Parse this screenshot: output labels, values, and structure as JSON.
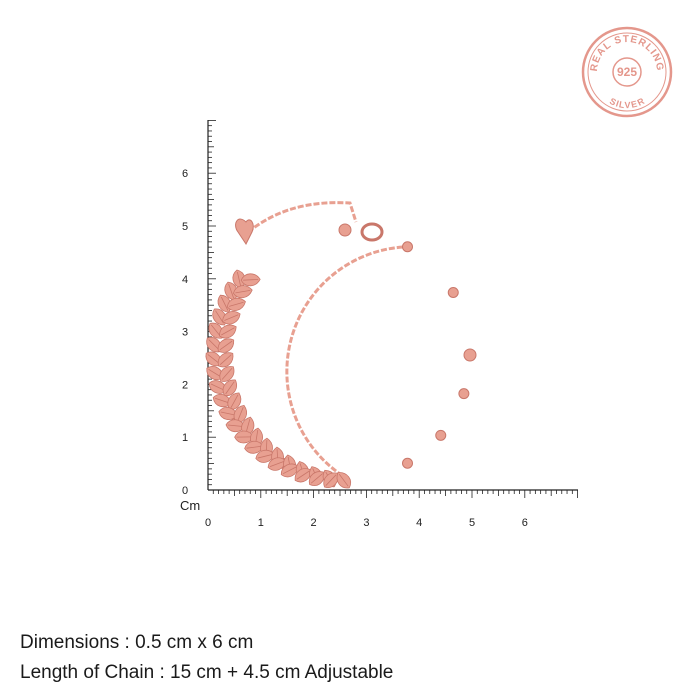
{
  "badge": {
    "top_text": "REAL STERLING",
    "center_text": "925",
    "bottom_text": "SILVER"
  },
  "ruler": {
    "unit": "Cm",
    "vertical_labels": [
      0,
      1,
      2,
      3,
      4,
      5,
      6
    ],
    "horizontal_labels": [
      0,
      1,
      2,
      3,
      4,
      5,
      6
    ]
  },
  "details": {
    "dimensions": "Dimensions : 0.5 cm x 6 cm",
    "chain_length": "Length of Chain : 15 cm + 4.5 cm Adjustable"
  }
}
